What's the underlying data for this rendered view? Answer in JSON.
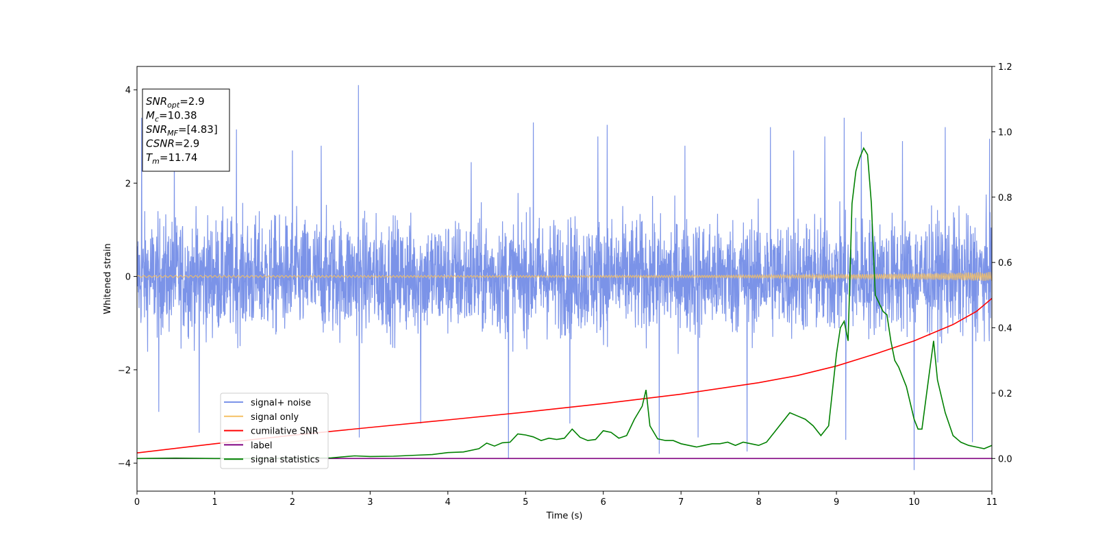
{
  "chart_data": {
    "type": "line",
    "xlabel": "Time (s)",
    "ylabel": "Whitened strain",
    "xlim": [
      0,
      11
    ],
    "ylim": [
      -4.6,
      4.5
    ],
    "ylim_right": [
      -0.1,
      1.2
    ],
    "x_ticks": [
      "0",
      "1",
      "2",
      "3",
      "4",
      "5",
      "6",
      "7",
      "8",
      "9",
      "10",
      "11"
    ],
    "y_ticks": [
      "4",
      "2",
      "0",
      "−2",
      "−4"
    ],
    "y_ticks_right": [
      "1.2",
      "1.0",
      "0.8",
      "0.6",
      "0.4",
      "0.2",
      "0.0"
    ],
    "legend_position": "lower-left",
    "grid": false,
    "info_box": [
      {
        "base": "SNR",
        "sub": "opt",
        "value": "=2.9"
      },
      {
        "base": "M",
        "sub": "c",
        "value": "=10.38"
      },
      {
        "base": "SNR",
        "sub": "MF",
        "value": "=[4.83]"
      },
      {
        "base": "CSNR",
        "sub": "",
        "value": "=2.9"
      },
      {
        "base": "T",
        "sub": "m",
        "value": "=11.74"
      }
    ],
    "series": [
      {
        "name": "signal+ noise",
        "color": "#7b93e8",
        "axis": "left",
        "kind": "noise",
        "typical_envelope": [
          -1.6,
          1.6
        ],
        "spikes": [
          {
            "x": 0.06,
            "y": 3.4
          },
          {
            "x": 0.28,
            "y": -2.9
          },
          {
            "x": 0.48,
            "y": 2.8
          },
          {
            "x": 0.8,
            "y": -3.35
          },
          {
            "x": 1.28,
            "y": 3.15
          },
          {
            "x": 2.0,
            "y": 2.7
          },
          {
            "x": 2.37,
            "y": 2.8
          },
          {
            "x": 2.85,
            "y": 4.1
          },
          {
            "x": 2.86,
            "y": -3.45
          },
          {
            "x": 3.65,
            "y": -3.15
          },
          {
            "x": 4.3,
            "y": 2.45
          },
          {
            "x": 4.78,
            "y": -3.9
          },
          {
            "x": 5.1,
            "y": 3.3
          },
          {
            "x": 5.57,
            "y": -3.15
          },
          {
            "x": 5.93,
            "y": 3.0
          },
          {
            "x": 6.05,
            "y": 3.25
          },
          {
            "x": 6.72,
            "y": -3.8
          },
          {
            "x": 7.05,
            "y": 2.8
          },
          {
            "x": 7.22,
            "y": -3.45
          },
          {
            "x": 7.85,
            "y": -3.75
          },
          {
            "x": 8.15,
            "y": 3.2
          },
          {
            "x": 8.45,
            "y": 2.7
          },
          {
            "x": 8.85,
            "y": 3.0
          },
          {
            "x": 9.1,
            "y": 3.4
          },
          {
            "x": 9.12,
            "y": -3.5
          },
          {
            "x": 9.32,
            "y": 3.1
          },
          {
            "x": 9.85,
            "y": 2.9
          },
          {
            "x": 10.0,
            "y": -4.15
          },
          {
            "x": 10.4,
            "y": 3.2
          },
          {
            "x": 10.75,
            "y": -3.55
          },
          {
            "x": 10.97,
            "y": 2.95
          }
        ]
      },
      {
        "name": "signal only",
        "color": "#f5c064",
        "axis": "left",
        "kind": "chirp",
        "amplitude_start": 0.02,
        "amplitude_end": 0.1
      },
      {
        "name": "cumilative SNR",
        "color": "#ff0000",
        "axis": "right",
        "x": [
          0,
          1,
          2,
          3,
          4,
          5,
          6,
          7,
          8,
          8.5,
          9,
          9.5,
          10,
          10.5,
          10.8,
          11
        ],
        "y": [
          0.017,
          0.045,
          0.071,
          0.095,
          0.118,
          0.142,
          0.168,
          0.197,
          0.232,
          0.254,
          0.283,
          0.32,
          0.36,
          0.41,
          0.45,
          0.49
        ]
      },
      {
        "name": "label",
        "color": "#800080",
        "axis": "right",
        "x": [
          0,
          11
        ],
        "y": [
          0.0,
          0.0
        ]
      },
      {
        "name": "signal statistics",
        "color": "#008000",
        "axis": "right",
        "x": [
          0,
          0.5,
          1.0,
          1.5,
          2.0,
          2.5,
          2.8,
          3.0,
          3.3,
          3.6,
          3.8,
          4.0,
          4.2,
          4.4,
          4.5,
          4.6,
          4.7,
          4.8,
          4.9,
          5.0,
          5.1,
          5.2,
          5.3,
          5.4,
          5.5,
          5.6,
          5.7,
          5.8,
          5.9,
          6.0,
          6.1,
          6.2,
          6.3,
          6.4,
          6.5,
          6.55,
          6.6,
          6.7,
          6.8,
          6.9,
          7.0,
          7.1,
          7.2,
          7.3,
          7.4,
          7.5,
          7.6,
          7.7,
          7.8,
          7.9,
          8.0,
          8.1,
          8.2,
          8.3,
          8.4,
          8.5,
          8.6,
          8.7,
          8.8,
          8.9,
          9.0,
          9.05,
          9.1,
          9.15,
          9.2,
          9.25,
          9.3,
          9.35,
          9.4,
          9.45,
          9.5,
          9.6,
          9.65,
          9.7,
          9.75,
          9.8,
          9.9,
          10.0,
          10.05,
          10.1,
          10.2,
          10.25,
          10.3,
          10.4,
          10.5,
          10.6,
          10.7,
          10.8,
          10.9,
          11.0
        ],
        "y": [
          0.0,
          0.001,
          0.0,
          0.0,
          0.001,
          0.002,
          0.008,
          0.006,
          0.007,
          0.01,
          0.012,
          0.018,
          0.02,
          0.03,
          0.047,
          0.038,
          0.048,
          0.05,
          0.075,
          0.072,
          0.066,
          0.055,
          0.062,
          0.058,
          0.062,
          0.09,
          0.065,
          0.055,
          0.058,
          0.085,
          0.08,
          0.062,
          0.07,
          0.12,
          0.16,
          0.21,
          0.1,
          0.06,
          0.055,
          0.055,
          0.045,
          0.04,
          0.035,
          0.04,
          0.045,
          0.045,
          0.05,
          0.04,
          0.05,
          0.045,
          0.04,
          0.05,
          0.08,
          0.11,
          0.14,
          0.13,
          0.12,
          0.1,
          0.07,
          0.1,
          0.32,
          0.4,
          0.42,
          0.36,
          0.78,
          0.88,
          0.92,
          0.95,
          0.93,
          0.78,
          0.5,
          0.45,
          0.44,
          0.36,
          0.3,
          0.28,
          0.22,
          0.12,
          0.09,
          0.09,
          0.27,
          0.36,
          0.24,
          0.14,
          0.07,
          0.05,
          0.04,
          0.035,
          0.03,
          0.04
        ]
      }
    ]
  }
}
